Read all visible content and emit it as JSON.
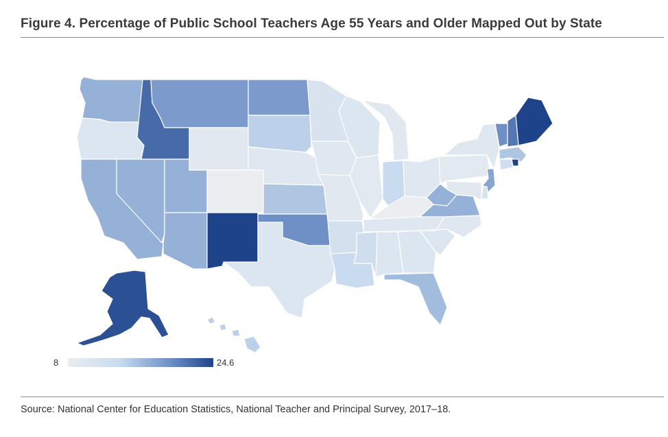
{
  "figure": {
    "title": "Figure 4. Percentage of Public School Teachers Age 55 Years and Older Mapped Out by State",
    "source": "Source: National Center for Education Statistics, National Teacher and Principal Survey, 2017–18."
  },
  "legend": {
    "min": "8",
    "max": "24.6"
  },
  "colors": {
    "low": "#ebedf0",
    "high": "#1f438a",
    "border": "#ffffff",
    "rule": "#8c8c8c"
  },
  "states": [
    {
      "name": "Washington",
      "shade": 0.55
    },
    {
      "name": "Oregon",
      "shade": 0.15
    },
    {
      "name": "California",
      "shade": 0.55
    },
    {
      "name": "Nevada",
      "shade": 0.55
    },
    {
      "name": "Idaho",
      "shade": 0.85
    },
    {
      "name": "Montana",
      "shade": 0.65
    },
    {
      "name": "Wyoming",
      "shade": 0.1
    },
    {
      "name": "Utah",
      "shade": 0.55
    },
    {
      "name": "Arizona",
      "shade": 0.55
    },
    {
      "name": "Colorado",
      "shade": 0.0
    },
    {
      "name": "New Mexico",
      "shade": 1.0
    },
    {
      "name": "North Dakota",
      "shade": 0.65
    },
    {
      "name": "South Dakota",
      "shade": 0.4
    },
    {
      "name": "Nebraska",
      "shade": 0.12
    },
    {
      "name": "Kansas",
      "shade": 0.45
    },
    {
      "name": "Oklahoma",
      "shade": 0.7
    },
    {
      "name": "Texas",
      "shade": 0.15
    },
    {
      "name": "Minnesota",
      "shade": 0.2
    },
    {
      "name": "Iowa",
      "shade": 0.12
    },
    {
      "name": "Missouri",
      "shade": 0.1
    },
    {
      "name": "Arkansas",
      "shade": 0.25
    },
    {
      "name": "Louisiana",
      "shade": 0.35
    },
    {
      "name": "Wisconsin",
      "shade": 0.15
    },
    {
      "name": "Illinois",
      "shade": 0.08
    },
    {
      "name": "Michigan",
      "shade": 0.1
    },
    {
      "name": "Indiana",
      "shade": 0.35
    },
    {
      "name": "Ohio",
      "shade": 0.12
    },
    {
      "name": "Kentucky",
      "shade": 0.0
    },
    {
      "name": "Tennessee",
      "shade": 0.12
    },
    {
      "name": "Mississippi",
      "shade": 0.3
    },
    {
      "name": "Alabama",
      "shade": 0.15
    },
    {
      "name": "Georgia",
      "shade": 0.15
    },
    {
      "name": "Florida",
      "shade": 0.5
    },
    {
      "name": "South Carolina",
      "shade": 0.15
    },
    {
      "name": "North Carolina",
      "shade": 0.12
    },
    {
      "name": "Virginia",
      "shade": 0.55
    },
    {
      "name": "West Virginia",
      "shade": 0.55
    },
    {
      "name": "Pennsylvania",
      "shade": 0.08
    },
    {
      "name": "New York",
      "shade": 0.12
    },
    {
      "name": "Vermont",
      "shade": 0.7
    },
    {
      "name": "New Hampshire",
      "shade": 0.8
    },
    {
      "name": "Maine",
      "shade": 1.0
    },
    {
      "name": "Massachusetts",
      "shade": 0.45
    },
    {
      "name": "Rhode Island",
      "shade": 1.0
    },
    {
      "name": "Connecticut",
      "shade": 0.3
    },
    {
      "name": "New Jersey",
      "shade": 0.6
    },
    {
      "name": "Delaware",
      "shade": 0.2
    },
    {
      "name": "Maryland",
      "shade": 0.1
    },
    {
      "name": "Alaska",
      "shade": 0.95
    },
    {
      "name": "Hawaii",
      "shade": 0.4
    }
  ]
}
